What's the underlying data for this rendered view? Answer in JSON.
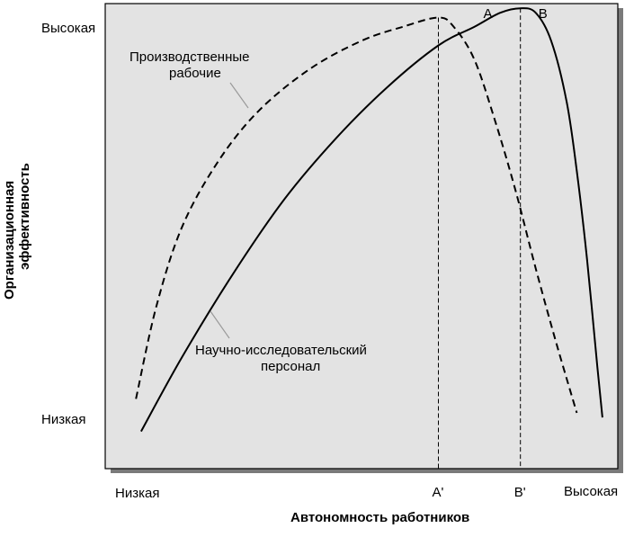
{
  "chart_data": {
    "type": "line",
    "title": "",
    "xlabel": "Автономность работников",
    "ylabel_lines": [
      "Организационная",
      "эффективность"
    ],
    "x_ticks": {
      "low": "Низкая",
      "high": "Высокая"
    },
    "y_ticks": {
      "low": "Низкая",
      "high": "Высокая"
    },
    "xlim": [
      0,
      100
    ],
    "ylim": [
      0,
      100
    ],
    "grid": false,
    "background": "#e3e3e3",
    "series": [
      {
        "name_lines": [
          "Производственные",
          "рабочие"
        ],
        "style": "dashed",
        "peak_label": "A",
        "foot_label": "A'",
        "peak_x": 65,
        "points": [
          [
            6,
            15
          ],
          [
            10,
            35
          ],
          [
            15,
            52
          ],
          [
            22,
            66
          ],
          [
            30,
            77
          ],
          [
            40,
            86
          ],
          [
            50,
            92
          ],
          [
            58,
            95
          ],
          [
            65,
            97
          ],
          [
            68,
            95
          ],
          [
            72,
            88
          ],
          [
            76,
            75
          ],
          [
            80,
            60
          ],
          [
            84,
            43
          ],
          [
            88,
            27
          ],
          [
            92,
            12
          ]
        ]
      },
      {
        "name_lines": [
          "Научно-исследовательский",
          "персонал"
        ],
        "style": "solid",
        "peak_label": "B",
        "foot_label": "B'",
        "peak_x": 81,
        "points": [
          [
            7,
            8
          ],
          [
            15,
            24
          ],
          [
            25,
            42
          ],
          [
            35,
            58
          ],
          [
            45,
            71
          ],
          [
            55,
            82
          ],
          [
            65,
            91
          ],
          [
            72,
            95
          ],
          [
            77,
            98
          ],
          [
            81,
            99
          ],
          [
            84,
            98
          ],
          [
            87,
            92
          ],
          [
            90,
            79
          ],
          [
            92,
            64
          ],
          [
            94,
            45
          ],
          [
            96,
            22
          ],
          [
            97,
            11
          ]
        ]
      }
    ]
  }
}
